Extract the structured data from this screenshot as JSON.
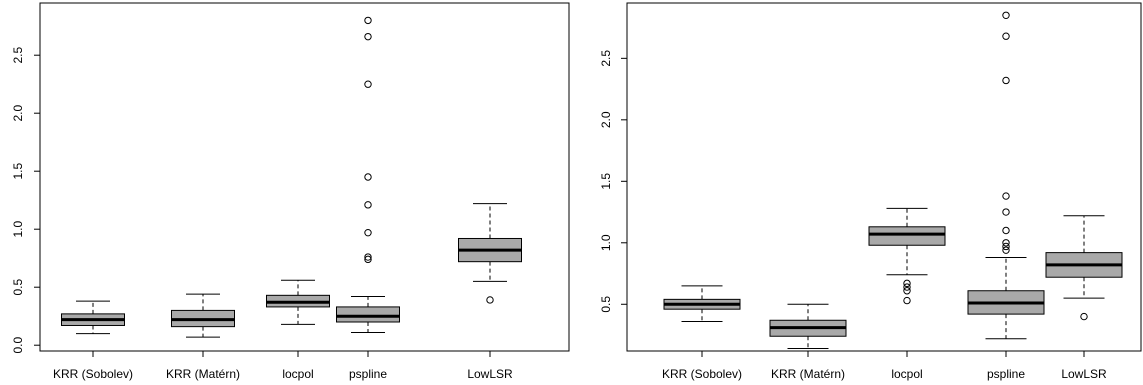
{
  "chart_data": [
    {
      "type": "boxplot",
      "title": "",
      "xlabel": "",
      "ylabel": "",
      "ylim": [
        -0.05,
        2.95
      ],
      "yticks": [
        "0.0",
        "0.5",
        "1.0",
        "1.5",
        "2.0",
        "2.5"
      ],
      "categories": [
        "KRR (Sobolev)",
        "KRR (Matérn)",
        "locpol",
        "pspline",
        "LowLSR"
      ],
      "boxes": [
        {
          "min": 0.1,
          "q1": 0.17,
          "median": 0.22,
          "q3": 0.27,
          "max": 0.38,
          "outliers": []
        },
        {
          "min": 0.07,
          "q1": 0.16,
          "median": 0.22,
          "q3": 0.3,
          "max": 0.44,
          "outliers": []
        },
        {
          "min": 0.18,
          "q1": 0.33,
          "median": 0.37,
          "q3": 0.43,
          "max": 0.56,
          "outliers": []
        },
        {
          "min": 0.11,
          "q1": 0.2,
          "median": 0.25,
          "q3": 0.33,
          "max": 0.42,
          "outliers": [
            2.8,
            2.66,
            2.25,
            1.45,
            1.21,
            0.97,
            0.76,
            0.74
          ]
        },
        {
          "min": 0.55,
          "q1": 0.72,
          "median": 0.82,
          "q3": 0.92,
          "max": 1.22,
          "outliers": [
            0.39
          ]
        }
      ]
    },
    {
      "type": "boxplot",
      "title": "",
      "xlabel": "",
      "ylabel": "",
      "ylim": [
        0.12,
        2.95
      ],
      "yticks": [
        "0.5",
        "1.0",
        "1.5",
        "2.0",
        "2.5"
      ],
      "categories": [
        "KRR (Sobolev)",
        "KRR (Matérn)",
        "locpol",
        "pspline",
        "LowLSR"
      ],
      "boxes": [
        {
          "min": 0.36,
          "q1": 0.46,
          "median": 0.5,
          "q3": 0.54,
          "max": 0.65,
          "outliers": []
        },
        {
          "min": 0.14,
          "q1": 0.24,
          "median": 0.31,
          "q3": 0.37,
          "max": 0.5,
          "outliers": []
        },
        {
          "min": 0.74,
          "q1": 0.98,
          "median": 1.07,
          "q3": 1.13,
          "max": 1.28,
          "outliers": [
            0.67,
            0.64,
            0.61,
            0.53
          ]
        },
        {
          "min": 0.22,
          "q1": 0.42,
          "median": 0.51,
          "q3": 0.61,
          "max": 0.88,
          "outliers": [
            2.85,
            2.68,
            2.32,
            1.38,
            1.25,
            1.1,
            1.0,
            0.97,
            0.94
          ]
        },
        {
          "min": 0.55,
          "q1": 0.72,
          "median": 0.82,
          "q3": 0.92,
          "max": 1.22,
          "outliers": [
            0.4
          ]
        }
      ]
    }
  ]
}
